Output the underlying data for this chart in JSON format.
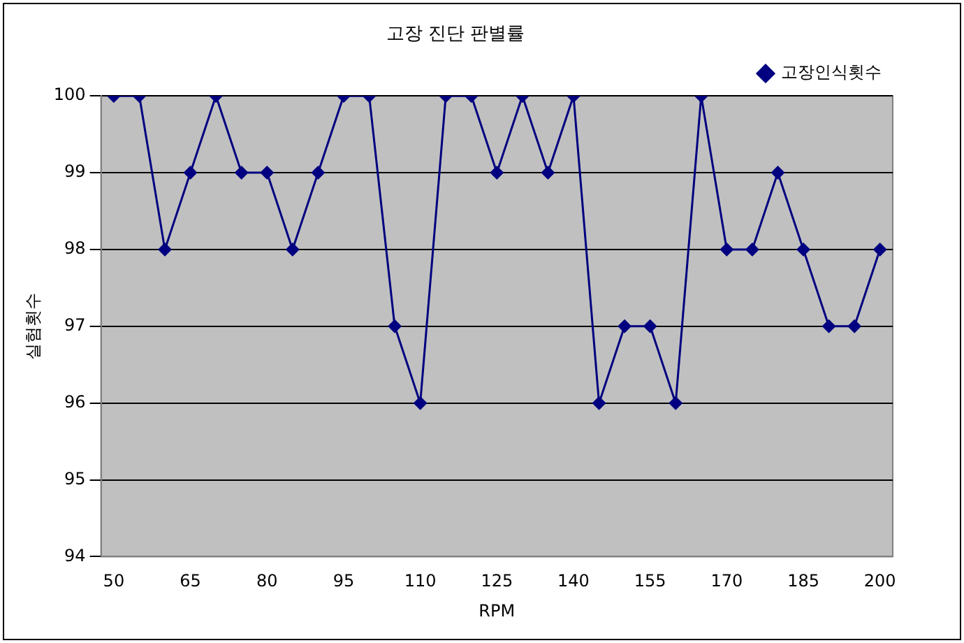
{
  "chart_data": {
    "type": "line",
    "title": "고장 진단 판별률",
    "xlabel": "RPM",
    "ylabel": "실험횟수",
    "categories": [
      "50",
      null,
      null,
      "65",
      null,
      null,
      "80",
      null,
      null,
      "95",
      null,
      null,
      "110",
      null,
      null,
      "125",
      null,
      null,
      "140",
      null,
      null,
      "155",
      null,
      null,
      "170",
      null,
      null,
      "185",
      null,
      null,
      "200"
    ],
    "series": [
      {
        "name": "고장인식횟수",
        "color": "#000080",
        "values": [
          100,
          100,
          98,
          99,
          100,
          99,
          99,
          98,
          99,
          100,
          100,
          97,
          96,
          100,
          100,
          99,
          100,
          99,
          100,
          96,
          97,
          97,
          96,
          100,
          98,
          98,
          99,
          98,
          97,
          97,
          98
        ]
      }
    ],
    "ylim": [
      94,
      100
    ],
    "yticks": [
      94,
      95,
      96,
      97,
      98,
      99,
      100
    ],
    "grid": "y",
    "legend": "top right",
    "marker": "diamond",
    "line_style": "solid"
  }
}
